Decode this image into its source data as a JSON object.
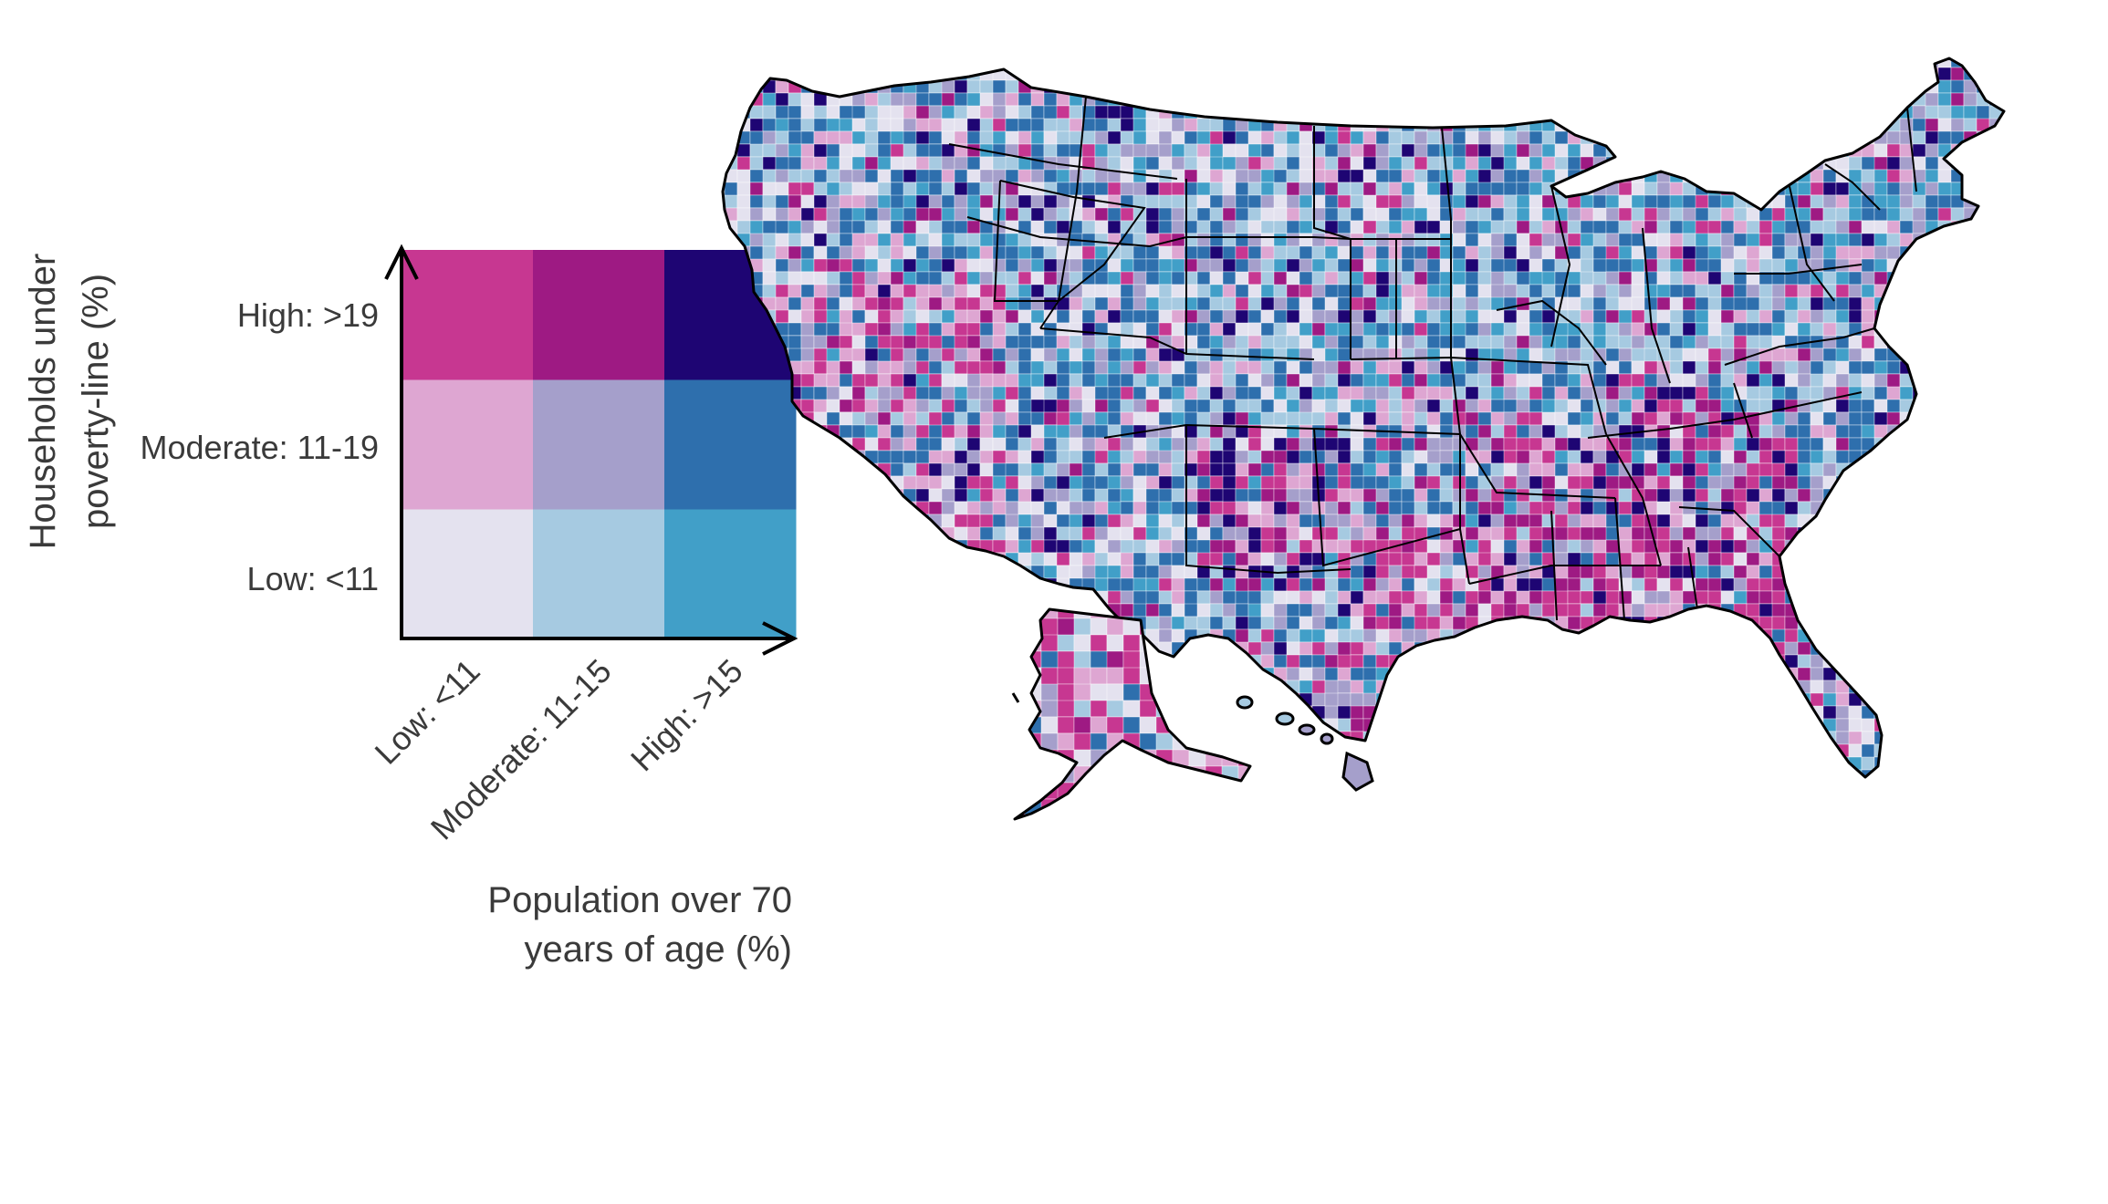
{
  "legend": {
    "y_axis_title": [
      "Households under",
      "poverty-line (%)"
    ],
    "x_axis_title": [
      "Population over 70",
      "years of age (%)"
    ],
    "y_ticks": [
      "Low: <11",
      "Moderate: 11-19",
      "High: >19"
    ],
    "x_ticks": [
      "Low: <11",
      "Moderate: 11-15",
      "High: >15"
    ],
    "colors": [
      [
        "#e4e2ef",
        "#a6cae1",
        "#419fc8"
      ],
      [
        "#dea6d2",
        "#a59fcb",
        "#2e6fad"
      ],
      [
        "#c73791",
        "#9e1a83",
        "#1e0573"
      ]
    ]
  },
  "map": {
    "region": "United States counties",
    "border_color": "#000000"
  }
}
